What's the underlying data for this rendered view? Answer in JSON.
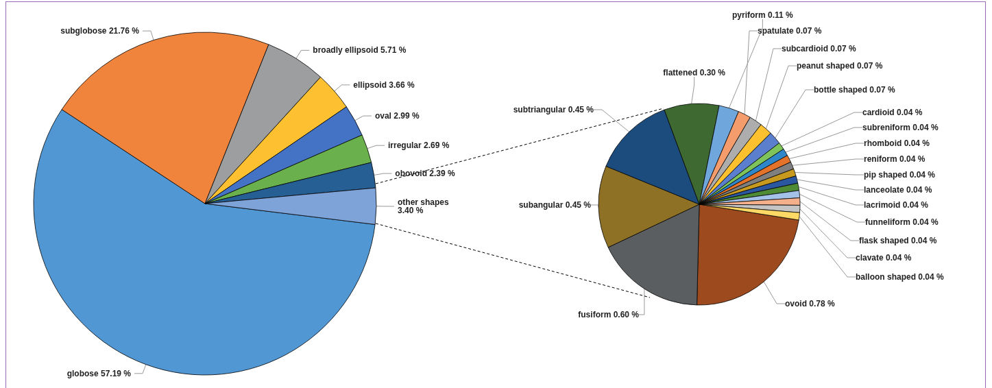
{
  "chart_data": [
    {
      "type": "pie",
      "categories": [
        "globose",
        "subglobose",
        "broadly ellipsoid",
        "ellipsoid",
        "oval",
        "irregular",
        "obovoid",
        "other shapes"
      ],
      "values": [
        57.19,
        21.76,
        5.71,
        3.66,
        2.99,
        2.69,
        2.39,
        3.4
      ],
      "value_labels": [
        "57.19 %",
        "21.76 %",
        "5.71 %",
        "3.66 %",
        "2.99 %",
        "2.69 %",
        "2.39 %",
        "3.40 %"
      ],
      "colors": [
        "#5097d3",
        "#f0843c",
        "#9c9e9f",
        "#fcc030",
        "#4472c4",
        "#6ab04c",
        "#265f93",
        "#7ea3d8"
      ]
    },
    {
      "type": "pie",
      "categories": [
        "ovoid",
        "fusiform",
        "subangular",
        "subtriangular",
        "flattened",
        "pyriform",
        "spatulate",
        "subcardioid",
        "peanut shaped",
        "bottle shaped",
        "cardioid",
        "subreniform",
        "rhomboid",
        "reniform",
        "pip shaped",
        "lanceolate",
        "lacrimoid",
        "funneliform",
        "flask shaped",
        "clavate",
        "balloon shaped"
      ],
      "values": [
        0.78,
        0.6,
        0.45,
        0.45,
        0.3,
        0.11,
        0.07,
        0.07,
        0.07,
        0.07,
        0.04,
        0.04,
        0.04,
        0.04,
        0.04,
        0.04,
        0.04,
        0.04,
        0.04,
        0.04,
        0.04
      ],
      "value_labels": [
        "0.78 %",
        "0.60 %",
        "0.45 %",
        "0.45 %",
        "0.30 %",
        "0.11 %",
        "0.07 %",
        "0.07 %",
        "0.07 %",
        "0.07 %",
        "0.04 %",
        "0.04 %",
        "0.04 %",
        "0.04 %",
        "0.04 %",
        "0.04 %",
        "0.04 %",
        "0.04 %",
        "0.04 %",
        "0.04 %",
        "0.04 %"
      ],
      "colors": [
        "#9c4a1e",
        "#5a5e60",
        "#8f7126",
        "#1c4b7e",
        "#3e6a32",
        "#6fa7dc",
        "#f59c6c",
        "#adadad",
        "#fdc02f",
        "#5b7fcc",
        "#7ec45b",
        "#2f87c9",
        "#e3732b",
        "#7f7f7f",
        "#c79a1f",
        "#2b56a0",
        "#4e8b34",
        "#a4c2e8",
        "#f4b08a",
        "#c4c4c4",
        "#ffd966"
      ]
    }
  ]
}
